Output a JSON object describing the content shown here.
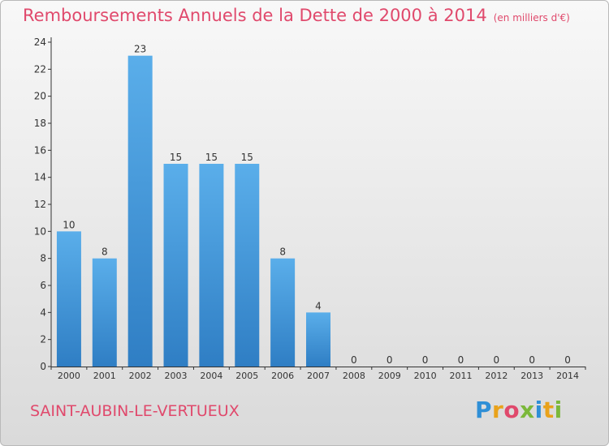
{
  "header": {
    "title": "Remboursements Annuels de la Dette de 2000 à 2014",
    "unit": "(en milliers d'€)"
  },
  "footer": {
    "commune": "SAINT-AUBIN-LE-VERTUEUX",
    "logo_letters": [
      "P",
      "r",
      "o",
      "x",
      "i",
      "t",
      "i"
    ],
    "logo_colors": [
      "#2f8fd6",
      "#e9a21b",
      "#e0496c",
      "#7bb83a",
      "#2f8fd6",
      "#e9a21b",
      "#7bb83a"
    ]
  },
  "colors": {
    "bar_top": "#5aaeea",
    "bar_bottom": "#2f7ec4",
    "axis": "#333333",
    "title": "#e0496c"
  },
  "chart_data": {
    "type": "bar",
    "title": "Remboursements Annuels de la Dette de 2000 à 2014",
    "categories": [
      "2000",
      "2001",
      "2002",
      "2003",
      "2004",
      "2005",
      "2006",
      "2007",
      "2008",
      "2009",
      "2010",
      "2011",
      "2012",
      "2013",
      "2014"
    ],
    "values": [
      10,
      8,
      23,
      15,
      15,
      15,
      8,
      4,
      0,
      0,
      0,
      0,
      0,
      0,
      0
    ],
    "ylim": [
      0,
      24
    ],
    "yticks": [
      0,
      2,
      4,
      6,
      8,
      10,
      12,
      14,
      16,
      18,
      20,
      22,
      24
    ],
    "grid": false,
    "data_labels": true
  }
}
